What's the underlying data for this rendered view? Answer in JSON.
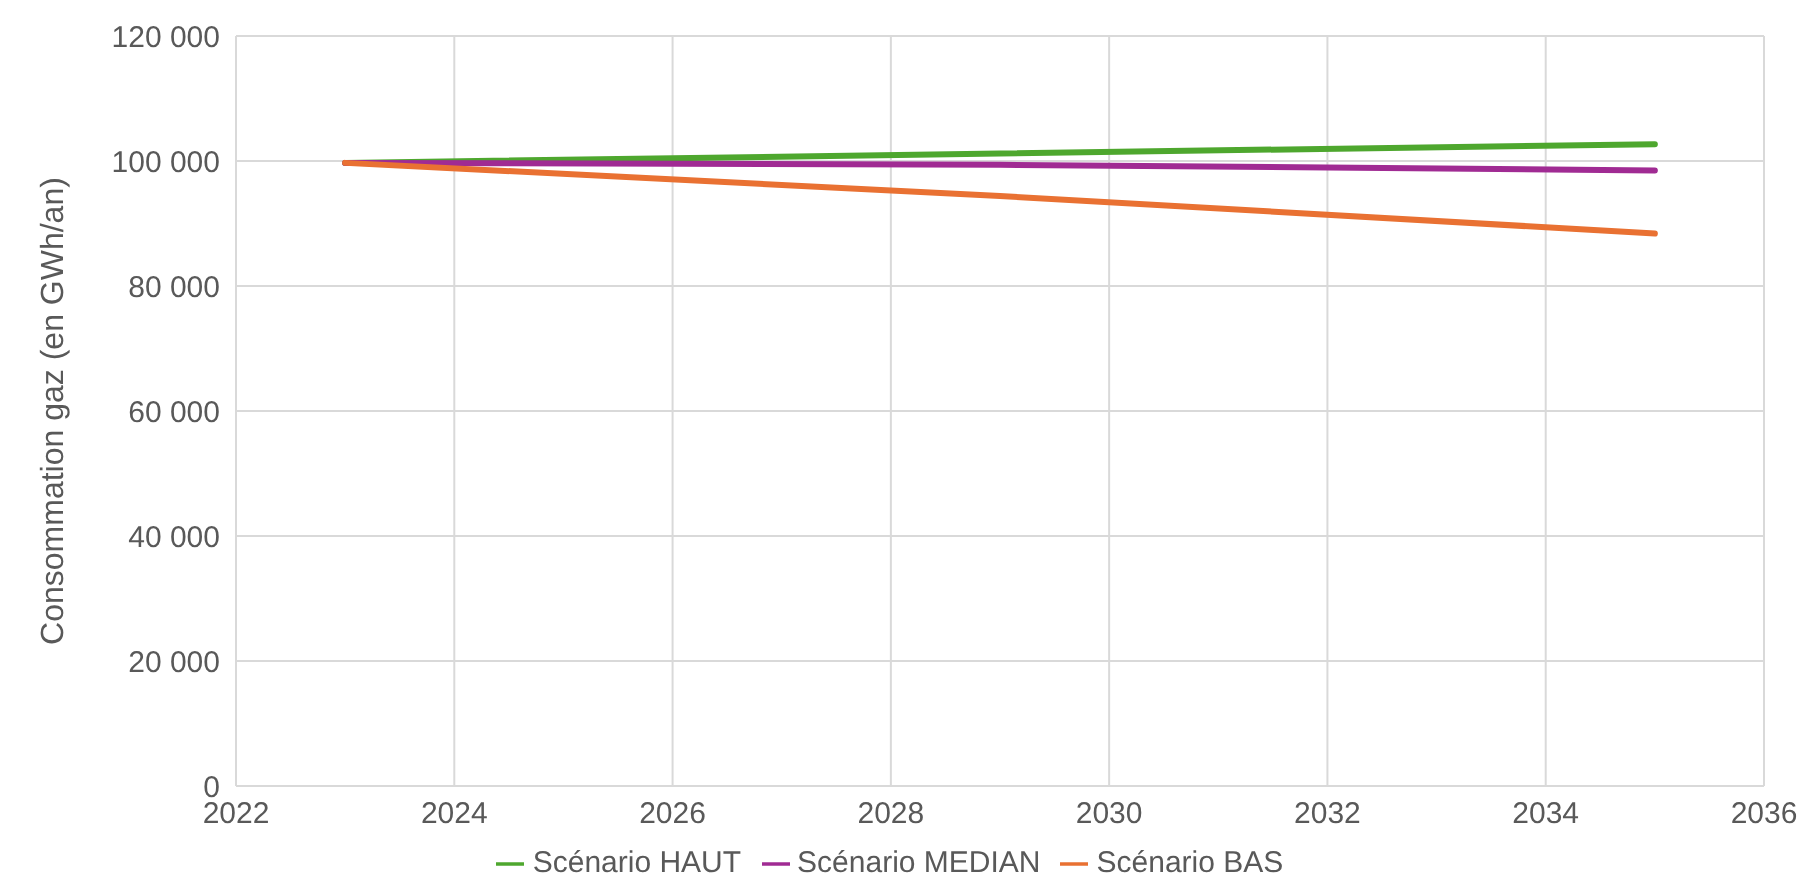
{
  "chart_data": {
    "type": "line",
    "ylabel": "Consommation gaz (en GWh/an)",
    "xlim": [
      2022,
      2036
    ],
    "xticks": [
      2022,
      2024,
      2026,
      2028,
      2030,
      2032,
      2034,
      2036
    ],
    "ylim": [
      0,
      120000
    ],
    "yticks": [
      {
        "value": 0,
        "label": "0"
      },
      {
        "value": 20000,
        "label": "20 000"
      },
      {
        "value": 40000,
        "label": "40 000"
      },
      {
        "value": 60000,
        "label": "60 000"
      },
      {
        "value": 80000,
        "label": "80 000"
      },
      {
        "value": 100000,
        "label": "100 000"
      },
      {
        "value": 120000,
        "label": "120 000"
      }
    ],
    "grid": true,
    "legend": "bottom",
    "marker": "none",
    "line_style": "solid",
    "x": [
      2023,
      2029,
      2035
    ],
    "series": [
      {
        "name": "Scénario HAUT",
        "color": "#4ea72e",
        "values": [
          99700,
          101200,
          102700
        ]
      },
      {
        "name": "Scénario MEDIAN",
        "color": "#a02b93",
        "values": [
          99700,
          99400,
          98500
        ]
      },
      {
        "name": "Scénario BAS",
        "color": "#e97132",
        "values": [
          99700,
          94400,
          88400
        ]
      }
    ]
  }
}
